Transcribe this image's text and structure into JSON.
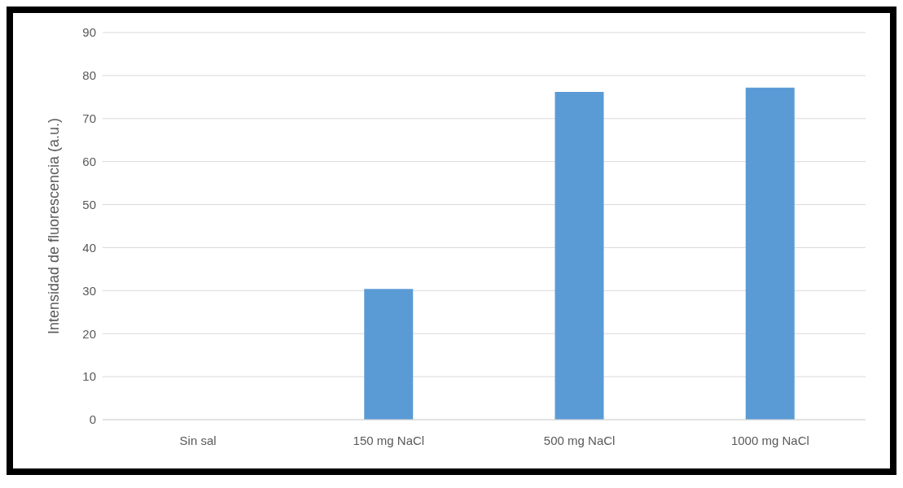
{
  "chart_data": {
    "type": "bar",
    "ylabel": "Intensidad de fluorescencia (a.u.)",
    "categories": [
      "Sin sal",
      "150 mg NaCl",
      "500 mg NaCl",
      "1000 mg NaCl"
    ],
    "values": [
      0,
      30.4,
      76.2,
      77.2
    ],
    "color": "#5b9bd5",
    "ylim": [
      0,
      90
    ],
    "yticks": [
      0,
      10,
      20,
      30,
      40,
      50,
      60,
      70,
      80,
      90
    ],
    "grid": "y"
  }
}
